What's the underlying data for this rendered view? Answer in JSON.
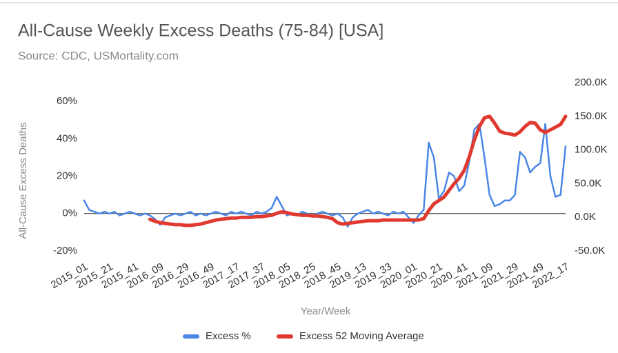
{
  "chart_data": {
    "type": "line",
    "title": "All-Cause Weekly Excess Deaths (75-84) [USA]",
    "subtitle": "Source: CDC, USMortality.com",
    "x_label": "Year/Week",
    "y_label": "All-Cause Excess Deaths",
    "categories": [
      "2015_01",
      null,
      null,
      null,
      null,
      "2015_21",
      null,
      null,
      null,
      null,
      "2015_41",
      null,
      null,
      null,
      null,
      "2016_09",
      null,
      null,
      null,
      null,
      "2016_29",
      null,
      null,
      null,
      null,
      "2016_49",
      null,
      null,
      null,
      null,
      "2017_17",
      null,
      null,
      null,
      null,
      "2017_37",
      null,
      null,
      null,
      null,
      "2018_05",
      null,
      null,
      null,
      null,
      "2018_25",
      null,
      null,
      null,
      null,
      "2018_45",
      null,
      null,
      null,
      null,
      "2019_13",
      null,
      null,
      null,
      null,
      "2019_33",
      null,
      null,
      null,
      null,
      "2020_01",
      null,
      null,
      null,
      null,
      "2020_21",
      null,
      null,
      null,
      null,
      "2020_41",
      null,
      null,
      null,
      null,
      "2021_09",
      null,
      null,
      null,
      null,
      "2021_29",
      null,
      null,
      null,
      null,
      "2021_49",
      null,
      null,
      null,
      null,
      "2022_17"
    ],
    "series": [
      {
        "name": "Excess %",
        "color": "#4a86e8",
        "values": [
          7,
          2,
          1,
          0,
          1,
          0,
          1,
          -1,
          0,
          1,
          0,
          -1,
          0,
          -1,
          -3,
          -6,
          -2,
          -1,
          0,
          -1,
          0,
          1,
          -1,
          0,
          -1,
          0,
          1,
          0,
          -1,
          1,
          0,
          1,
          0,
          -1,
          1,
          0,
          1,
          3,
          9,
          4,
          -1,
          0,
          -1,
          1,
          0,
          -1,
          0,
          1,
          0,
          -1,
          0,
          -2,
          -7,
          -2,
          0,
          1,
          2,
          0,
          1,
          0,
          -1,
          1,
          0,
          1,
          -2,
          -5,
          -1,
          2,
          38,
          30,
          8,
          12,
          22,
          20,
          12,
          15,
          28,
          45,
          48,
          30,
          10,
          4,
          5,
          7,
          7,
          10,
          33,
          30,
          22,
          25,
          27,
          48,
          20,
          9,
          10,
          36
        ]
      },
      {
        "name": "Excess 52 Moving Average",
        "color": "#e03a30",
        "axis": "y2",
        "values": [
          null,
          null,
          null,
          null,
          null,
          null,
          null,
          null,
          null,
          null,
          null,
          null,
          null,
          -3000,
          -6000,
          -8000,
          -9000,
          -10000,
          -11000,
          -11000,
          -12000,
          -12000,
          -11000,
          -10000,
          -8000,
          -6000,
          -4000,
          -3000,
          -2000,
          -1000,
          -1000,
          0,
          0,
          0,
          1000,
          1000,
          2000,
          3000,
          6000,
          8000,
          7000,
          5000,
          4000,
          3000,
          3000,
          2000,
          2000,
          1000,
          0,
          -2000,
          -8000,
          -10000,
          -9000,
          -8000,
          -7000,
          -6000,
          -5000,
          -5000,
          -5000,
          -4000,
          -4000,
          -4000,
          -4000,
          -4000,
          -4000,
          -4000,
          -4000,
          -2000,
          10000,
          20000,
          25000,
          30000,
          40000,
          50000,
          58000,
          70000,
          90000,
          115000,
          135000,
          148000,
          150000,
          140000,
          128000,
          125000,
          124000,
          122000,
          127000,
          135000,
          141000,
          140000,
          130000,
          126000,
          130000,
          134000,
          138000,
          150000
        ]
      }
    ],
    "ylim": [
      -20,
      70
    ],
    "yticks": [
      {
        "value": -20,
        "label": "-20%"
      },
      {
        "value": 0,
        "label": "0%"
      },
      {
        "value": 20,
        "label": "20%"
      },
      {
        "value": 40,
        "label": "40%"
      },
      {
        "value": 60,
        "label": "60%"
      }
    ],
    "y2lim": [
      -50000,
      200000
    ],
    "y2ticks": [
      {
        "value": -50000,
        "label": "-50.0K"
      },
      {
        "value": 0,
        "label": "0.0K"
      },
      {
        "value": 50000,
        "label": "50.0K"
      },
      {
        "value": 100000,
        "label": "100.0K"
      },
      {
        "value": 150000,
        "label": "150.0K"
      },
      {
        "value": 200000,
        "label": "200.0K"
      }
    ],
    "grid": false,
    "legend": "bottom"
  }
}
